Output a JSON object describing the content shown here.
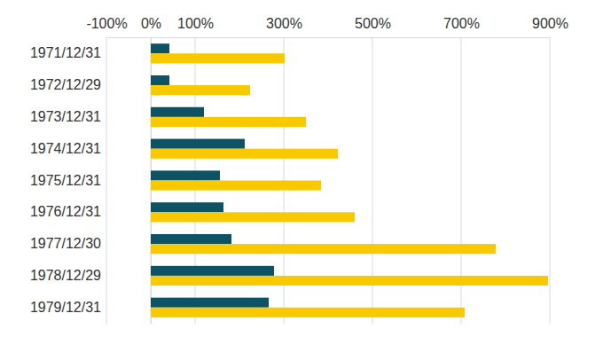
{
  "chart_data": {
    "type": "bar",
    "orientation": "horizontal",
    "grid": true,
    "categories": [
      "1971/12/31",
      "1972/12/29",
      "1973/12/31",
      "1974/12/31",
      "1975/12/31",
      "1976/12/31",
      "1977/12/30",
      "1978/12/29",
      "1979/12/31"
    ],
    "series": [
      {
        "color": "#0e5363",
        "values": [
          42,
          42,
          120,
          212,
          156,
          164,
          182,
          278,
          266
        ]
      },
      {
        "color": "#f9c900",
        "values": [
          302,
          224,
          350,
          422,
          384,
          460,
          778,
          896,
          708
        ]
      }
    ],
    "xlim": [
      -100,
      900
    ],
    "xticks": [
      {
        "value": -100,
        "label": "-100%"
      },
      {
        "value": 0,
        "label": "0%"
      },
      {
        "value": 100,
        "label": "100%"
      },
      {
        "value": 300,
        "label": "300%"
      },
      {
        "value": 500,
        "label": "500%"
      },
      {
        "value": 700,
        "label": "700%"
      },
      {
        "value": 900,
        "label": "900%"
      }
    ]
  }
}
